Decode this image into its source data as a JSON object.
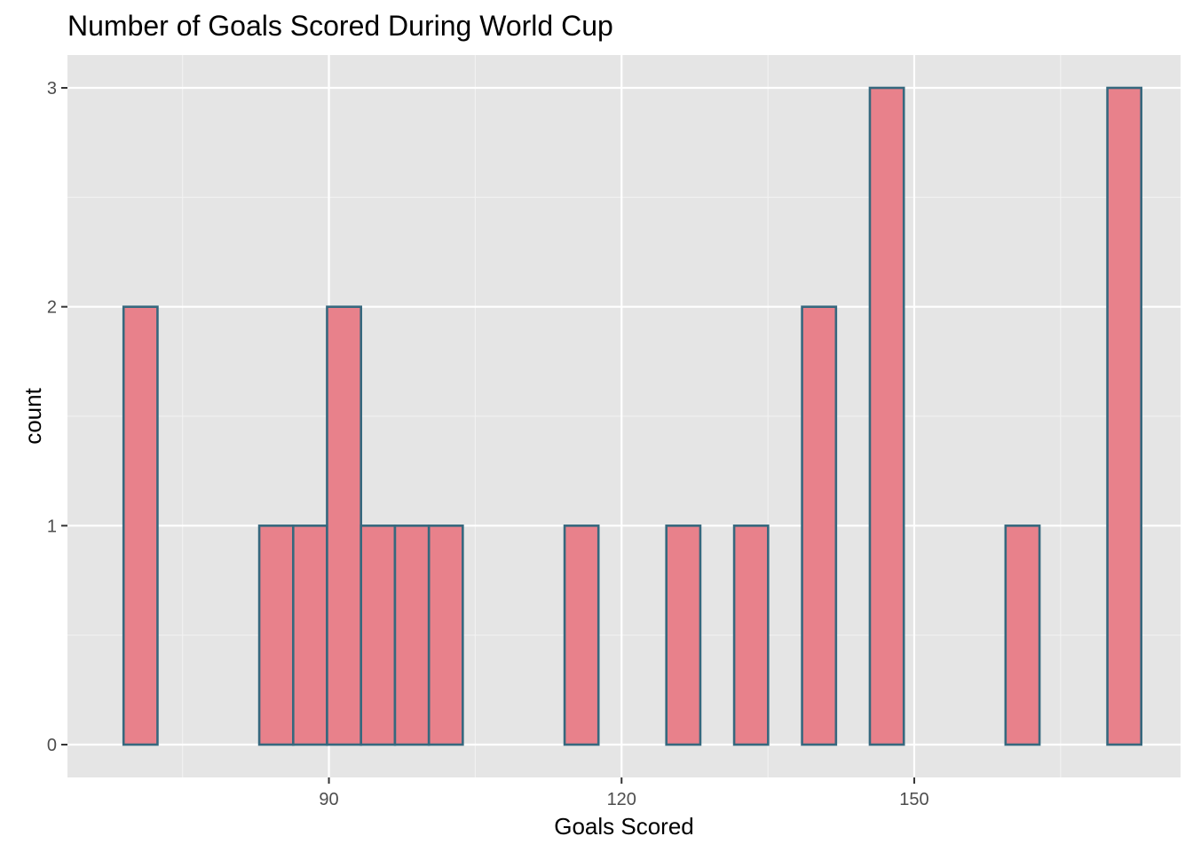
{
  "chart_data": {
    "type": "histogram",
    "title": "Number of Goals Scored During World Cup",
    "xlabel": "Goals Scored",
    "ylabel": "count",
    "xlim": [
      63.2,
      177.3
    ],
    "ylim": [
      -0.15,
      3.15
    ],
    "x_ticks": [
      90,
      120,
      150
    ],
    "x_minor_ticks": [
      75,
      105,
      135,
      165
    ],
    "y_ticks": [
      0,
      1,
      2,
      3
    ],
    "y_minor_ticks": [
      0.5,
      1.5,
      2.5
    ],
    "bin_width": 3.48,
    "bins": [
      {
        "start": 68.95,
        "end": 72.43,
        "count": 2
      },
      {
        "start": 72.43,
        "end": 75.9,
        "count": 0
      },
      {
        "start": 75.9,
        "end": 79.38,
        "count": 0
      },
      {
        "start": 79.38,
        "end": 82.86,
        "count": 0
      },
      {
        "start": 82.86,
        "end": 86.34,
        "count": 1
      },
      {
        "start": 86.34,
        "end": 89.81,
        "count": 1
      },
      {
        "start": 89.81,
        "end": 93.29,
        "count": 2
      },
      {
        "start": 93.29,
        "end": 96.77,
        "count": 1
      },
      {
        "start": 96.77,
        "end": 100.25,
        "count": 1
      },
      {
        "start": 100.25,
        "end": 103.72,
        "count": 1
      },
      {
        "start": 103.72,
        "end": 107.2,
        "count": 0
      },
      {
        "start": 107.2,
        "end": 110.68,
        "count": 0
      },
      {
        "start": 110.68,
        "end": 114.16,
        "count": 0
      },
      {
        "start": 114.16,
        "end": 117.63,
        "count": 1
      },
      {
        "start": 117.63,
        "end": 121.11,
        "count": 0
      },
      {
        "start": 121.11,
        "end": 124.59,
        "count": 0
      },
      {
        "start": 124.59,
        "end": 128.07,
        "count": 1
      },
      {
        "start": 128.07,
        "end": 131.54,
        "count": 0
      },
      {
        "start": 131.54,
        "end": 135.02,
        "count": 1
      },
      {
        "start": 135.02,
        "end": 138.5,
        "count": 0
      },
      {
        "start": 138.5,
        "end": 141.98,
        "count": 2
      },
      {
        "start": 141.98,
        "end": 145.45,
        "count": 0
      },
      {
        "start": 145.45,
        "end": 148.93,
        "count": 3
      },
      {
        "start": 148.93,
        "end": 152.41,
        "count": 0
      },
      {
        "start": 152.41,
        "end": 155.89,
        "count": 0
      },
      {
        "start": 155.89,
        "end": 159.36,
        "count": 0
      },
      {
        "start": 159.36,
        "end": 162.84,
        "count": 1
      },
      {
        "start": 162.84,
        "end": 166.32,
        "count": 0
      },
      {
        "start": 166.32,
        "end": 169.8,
        "count": 0
      },
      {
        "start": 169.8,
        "end": 173.27,
        "count": 3
      }
    ],
    "grid": true,
    "colors": {
      "fill": "#e8818b",
      "outline": "#36687e",
      "panel_background": "#e5e5e5",
      "grid_major": "#ffffff",
      "grid_minor": "#f2f2f2",
      "tick_text": "#4d4d4d",
      "tick_mark": "#333333"
    }
  }
}
